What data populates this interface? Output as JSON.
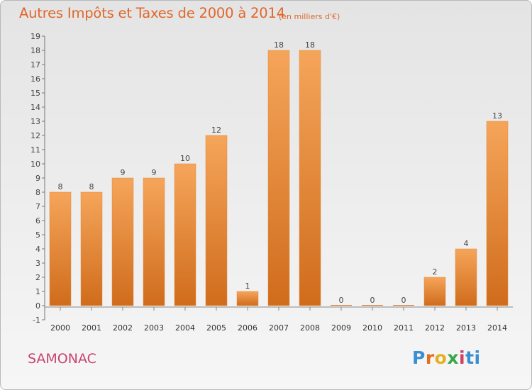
{
  "header": {
    "title": "Autres Impôts et Taxes de 2000 à 2014",
    "subtitle": "(en milliers d'€)"
  },
  "footer": {
    "commune": "SAMONAC",
    "logo_letters": [
      "P",
      "r",
      "o",
      "x",
      "i",
      "ti"
    ]
  },
  "colors": {
    "bar_top": "#f5a55a",
    "bar_bottom": "#d06c1c",
    "title": "#e0672a",
    "commune": "#c8456e"
  },
  "chart_data": {
    "type": "bar",
    "title": "Autres Impôts et Taxes de 2000 à 2014",
    "subtitle": "(en milliers d'€)",
    "categories": [
      "2000",
      "2001",
      "2002",
      "2003",
      "2004",
      "2005",
      "2006",
      "2007",
      "2008",
      "2009",
      "2010",
      "2011",
      "2012",
      "2013",
      "2014"
    ],
    "values": [
      8,
      8,
      9,
      9,
      10,
      12,
      1,
      18,
      18,
      0,
      0,
      0,
      2,
      4,
      13
    ],
    "data_labels": [
      "8",
      "8",
      "9",
      "9",
      "10",
      "12",
      "1",
      "18",
      "18",
      "0",
      "0",
      "0",
      "2",
      "4",
      "13"
    ],
    "y_ticks": [
      "-1",
      "0",
      "1",
      "2",
      "3",
      "4",
      "5",
      "6",
      "7",
      "8",
      "9",
      "10",
      "11",
      "12",
      "13",
      "14",
      "15",
      "16",
      "17",
      "18",
      "19"
    ],
    "ylim": [
      -1,
      19
    ],
    "xlabel": "",
    "ylabel": "",
    "grid": false,
    "legend": "none"
  }
}
